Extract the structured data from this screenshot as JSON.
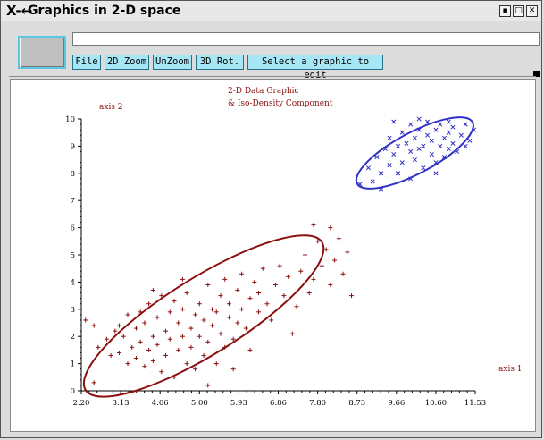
{
  "window": {
    "title_icon": "X-↔",
    "title": "Graphics in 2-D space",
    "controls": [
      "▪",
      "□",
      "✕"
    ]
  },
  "toolbar": {
    "file_label": "File",
    "zoom2d_label": "2D Zoom",
    "unzoom_label": "UnZoom",
    "rot3d_label": "3D Rot.",
    "select_label": "Select a graphic to edit",
    "text_field_value": ""
  },
  "colors": {
    "accent": "#a7e6f4",
    "series1": "#8b0f0f",
    "series2": "#3030c8"
  },
  "chart_data": {
    "type": "scatter",
    "title_lines": [
      "2-D Data Graphic",
      "& Iso-Density Component"
    ],
    "xlabel": "axis 1",
    "ylabel": "axis 2",
    "xlim": [
      2.2,
      11.53
    ],
    "ylim": [
      0,
      10
    ],
    "x_ticks": [
      "2.20",
      "3.13",
      "4.06",
      "5.00",
      "5.93",
      "6.86",
      "7.80",
      "8.73",
      "9.66",
      "10.60",
      "11.53"
    ],
    "y_ticks": [
      "0",
      "1",
      "2",
      "3",
      "4",
      "5",
      "6",
      "7",
      "8",
      "9",
      "10"
    ],
    "series": [
      {
        "marker": "+",
        "color": "#8b0f0f",
        "points": [
          [
            2.3,
            2.6
          ],
          [
            2.5,
            2.4
          ],
          [
            2.6,
            1.6
          ],
          [
            2.8,
            1.9
          ],
          [
            2.9,
            1.3
          ],
          [
            3.0,
            2.2
          ],
          [
            3.1,
            1.4
          ],
          [
            3.1,
            2.4
          ],
          [
            3.2,
            2.0
          ],
          [
            3.3,
            1.0
          ],
          [
            3.3,
            2.8
          ],
          [
            3.4,
            1.6
          ],
          [
            3.5,
            2.3
          ],
          [
            3.5,
            1.2
          ],
          [
            3.6,
            2.9
          ],
          [
            3.6,
            1.8
          ],
          [
            3.7,
            0.9
          ],
          [
            3.7,
            2.5
          ],
          [
            3.8,
            1.5
          ],
          [
            3.8,
            3.2
          ],
          [
            3.9,
            2.0
          ],
          [
            3.9,
            1.1
          ],
          [
            4.0,
            2.7
          ],
          [
            4.0,
            1.7
          ],
          [
            4.1,
            3.5
          ],
          [
            4.1,
            0.7
          ],
          [
            4.2,
            2.2
          ],
          [
            4.2,
            1.3
          ],
          [
            4.3,
            2.9
          ],
          [
            4.3,
            1.9
          ],
          [
            4.4,
            3.3
          ],
          [
            4.4,
            0.5
          ],
          [
            4.5,
            2.5
          ],
          [
            4.5,
            1.5
          ],
          [
            4.6,
            3.0
          ],
          [
            4.6,
            2.0
          ],
          [
            4.7,
            1.0
          ],
          [
            4.7,
            3.6
          ],
          [
            4.8,
            2.3
          ],
          [
            4.8,
            1.6
          ],
          [
            4.9,
            2.8
          ],
          [
            4.9,
            0.8
          ],
          [
            5.0,
            3.2
          ],
          [
            5.0,
            2.0
          ],
          [
            5.1,
            1.3
          ],
          [
            5.1,
            2.6
          ],
          [
            5.2,
            3.9
          ],
          [
            5.2,
            1.8
          ],
          [
            5.3,
            2.4
          ],
          [
            5.3,
            3.0
          ],
          [
            5.4,
            1.0
          ],
          [
            5.4,
            2.9
          ],
          [
            5.5,
            3.5
          ],
          [
            5.5,
            2.1
          ],
          [
            5.6,
            1.6
          ],
          [
            5.6,
            4.1
          ],
          [
            5.7,
            2.7
          ],
          [
            5.7,
            3.2
          ],
          [
            5.8,
            1.9
          ],
          [
            5.8,
            0.8
          ],
          [
            5.9,
            3.7
          ],
          [
            5.9,
            2.5
          ],
          [
            6.0,
            3.0
          ],
          [
            6.0,
            4.3
          ],
          [
            6.1,
            2.3
          ],
          [
            6.2,
            3.4
          ],
          [
            6.2,
            1.5
          ],
          [
            6.3,
            4.0
          ],
          [
            6.4,
            2.9
          ],
          [
            6.4,
            3.6
          ],
          [
            6.5,
            4.5
          ],
          [
            6.6,
            3.2
          ],
          [
            6.7,
            2.6
          ],
          [
            6.8,
            3.9
          ],
          [
            6.9,
            4.6
          ],
          [
            7.0,
            3.5
          ],
          [
            7.1,
            4.2
          ],
          [
            7.2,
            2.1
          ],
          [
            7.3,
            3.1
          ],
          [
            7.4,
            4.4
          ],
          [
            7.5,
            5.0
          ],
          [
            7.6,
            3.6
          ],
          [
            7.7,
            4.1
          ],
          [
            7.8,
            5.5
          ],
          [
            7.9,
            4.6
          ],
          [
            8.0,
            5.2
          ],
          [
            8.1,
            3.9
          ],
          [
            8.2,
            4.8
          ],
          [
            8.3,
            5.6
          ],
          [
            8.4,
            4.3
          ],
          [
            8.6,
            3.5
          ],
          [
            7.7,
            6.1
          ],
          [
            8.1,
            6.0
          ],
          [
            8.5,
            5.1
          ],
          [
            3.9,
            3.7
          ],
          [
            4.6,
            4.1
          ],
          [
            2.5,
            0.3
          ],
          [
            5.2,
            0.2
          ]
        ]
      },
      {
        "marker": "x",
        "color": "#3030c8",
        "points": [
          [
            8.8,
            7.6
          ],
          [
            9.0,
            8.2
          ],
          [
            9.1,
            7.7
          ],
          [
            9.2,
            8.6
          ],
          [
            9.3,
            8.0
          ],
          [
            9.4,
            8.9
          ],
          [
            9.5,
            8.3
          ],
          [
            9.5,
            9.3
          ],
          [
            9.6,
            8.7
          ],
          [
            9.7,
            9.0
          ],
          [
            9.7,
            8.0
          ],
          [
            9.8,
            9.5
          ],
          [
            9.8,
            8.4
          ],
          [
            9.9,
            9.1
          ],
          [
            10.0,
            8.8
          ],
          [
            10.0,
            9.8
          ],
          [
            10.1,
            8.5
          ],
          [
            10.1,
            9.3
          ],
          [
            10.2,
            8.9
          ],
          [
            10.2,
            9.6
          ],
          [
            10.3,
            9.0
          ],
          [
            10.3,
            8.2
          ],
          [
            10.4,
            9.4
          ],
          [
            10.4,
            9.9
          ],
          [
            10.5,
            8.7
          ],
          [
            10.5,
            9.2
          ],
          [
            10.6,
            9.6
          ],
          [
            10.6,
            8.4
          ],
          [
            10.7,
            9.0
          ],
          [
            10.7,
            9.8
          ],
          [
            10.8,
            9.3
          ],
          [
            10.8,
            8.6
          ],
          [
            10.9,
            9.5
          ],
          [
            10.9,
            8.9
          ],
          [
            11.0,
            9.7
          ],
          [
            11.0,
            9.1
          ],
          [
            11.1,
            8.8
          ],
          [
            11.2,
            9.4
          ],
          [
            11.3,
            9.0
          ],
          [
            11.3,
            9.8
          ],
          [
            11.4,
            9.2
          ],
          [
            9.6,
            9.9
          ],
          [
            10.2,
            10.0
          ],
          [
            10.6,
            8.0
          ],
          [
            10.0,
            7.8
          ],
          [
            9.3,
            7.4
          ],
          [
            11.5,
            9.6
          ],
          [
            10.9,
            9.9
          ]
        ]
      }
    ],
    "ellipses": [
      {
        "color": "#8b0f0f",
        "center": [
          5.1,
          2.75
        ],
        "rx_units": 3.3,
        "ry_units": 1.4,
        "angle_deg": -32
      },
      {
        "color": "#3030c8",
        "center": [
          10.1,
          8.75
        ],
        "rx_units": 1.55,
        "ry_units": 0.75,
        "angle_deg": -28
      }
    ]
  }
}
